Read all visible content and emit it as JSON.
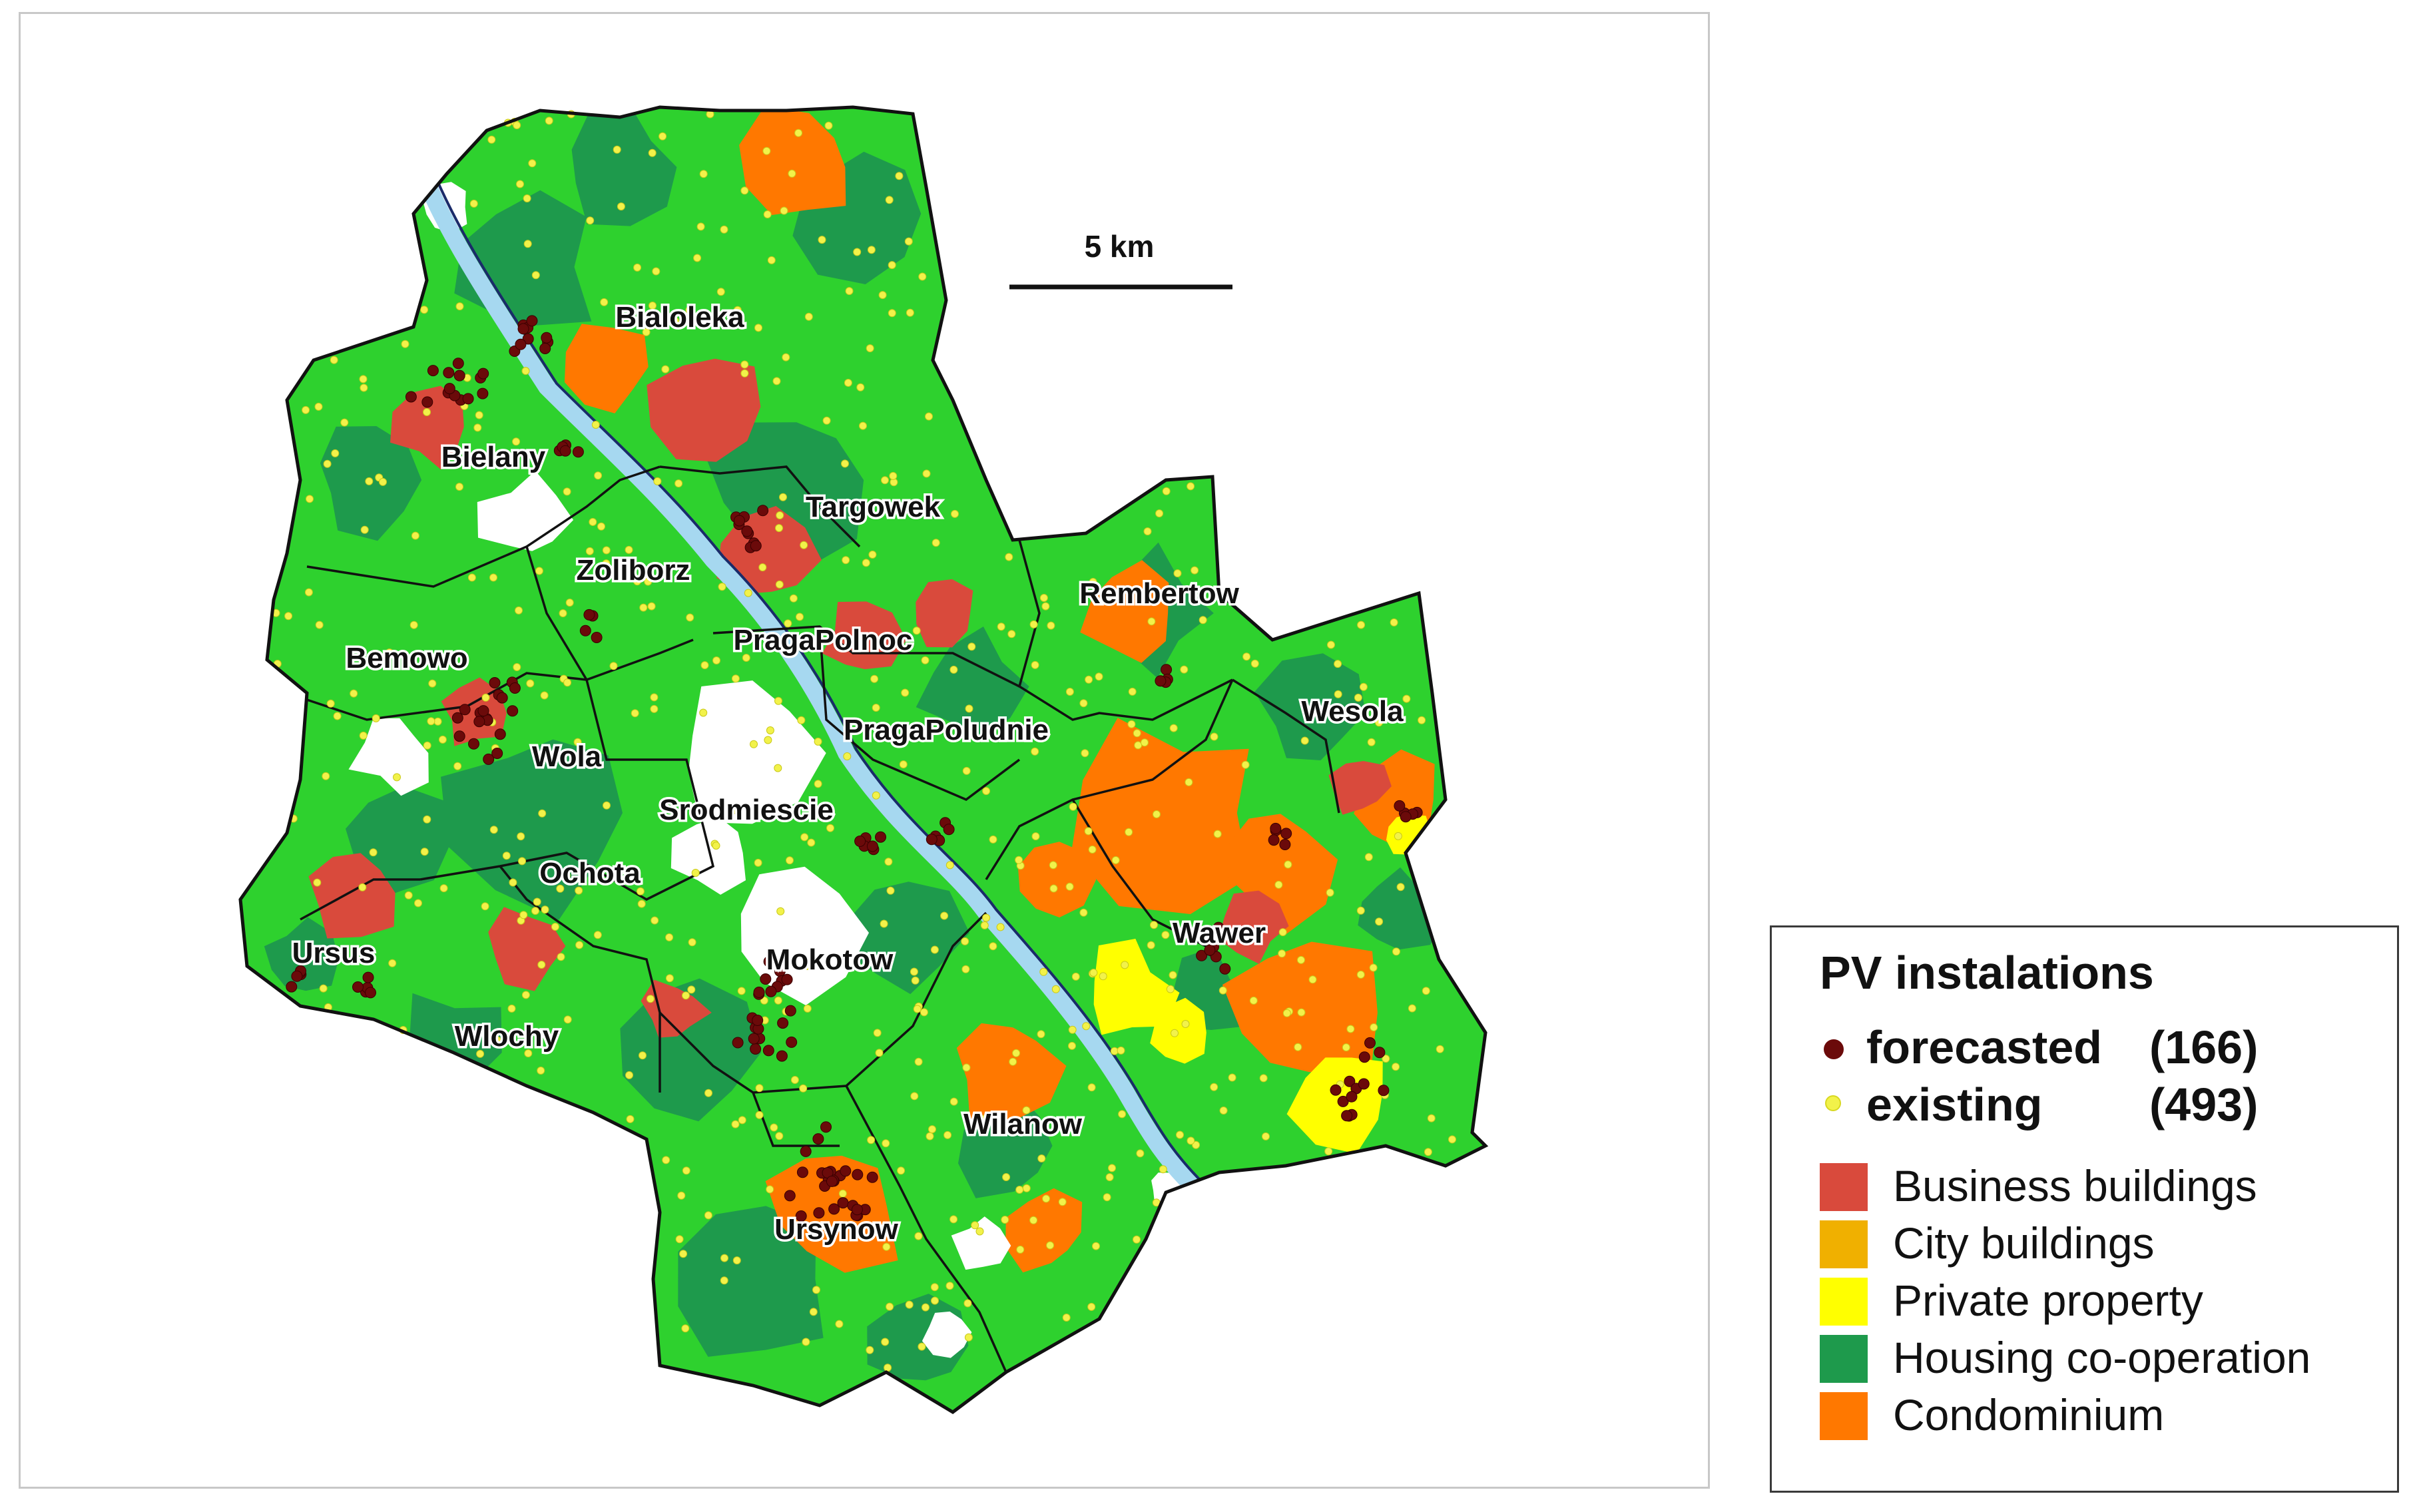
{
  "scale_bar": {
    "label": "5 km"
  },
  "legend": {
    "title": "PV instalations",
    "pv_types": [
      {
        "name": "forecasted",
        "count": "(166)",
        "color": "#6b0a0a"
      },
      {
        "name": "existing",
        "count": "(493)",
        "color": "#f2f24a"
      }
    ],
    "categories": [
      {
        "label": "Business buildings",
        "color": "#d94a3c"
      },
      {
        "label": "City buildings",
        "color": "#f0b000"
      },
      {
        "label": "Private property",
        "color": "#ffff00"
      },
      {
        "label": "Housing co-operation",
        "color": "#1e9a4c"
      },
      {
        "label": "Condominium",
        "color": "#ff7800"
      }
    ]
  },
  "districts": [
    {
      "name": "Bialoleka"
    },
    {
      "name": "Bielany"
    },
    {
      "name": "Targowek"
    },
    {
      "name": "Zoliborz"
    },
    {
      "name": "Rembertow"
    },
    {
      "name": "PragaPolnoc"
    },
    {
      "name": "Bemowo"
    },
    {
      "name": "Wesola"
    },
    {
      "name": "PragaPoludnie"
    },
    {
      "name": "Wola"
    },
    {
      "name": "Srodmiescie"
    },
    {
      "name": "Ochota"
    },
    {
      "name": "Wawer"
    },
    {
      "name": "Ursus"
    },
    {
      "name": "Mokotow"
    },
    {
      "name": "Wlochy"
    },
    {
      "name": "Wilanow"
    },
    {
      "name": "Ursynow"
    }
  ]
}
